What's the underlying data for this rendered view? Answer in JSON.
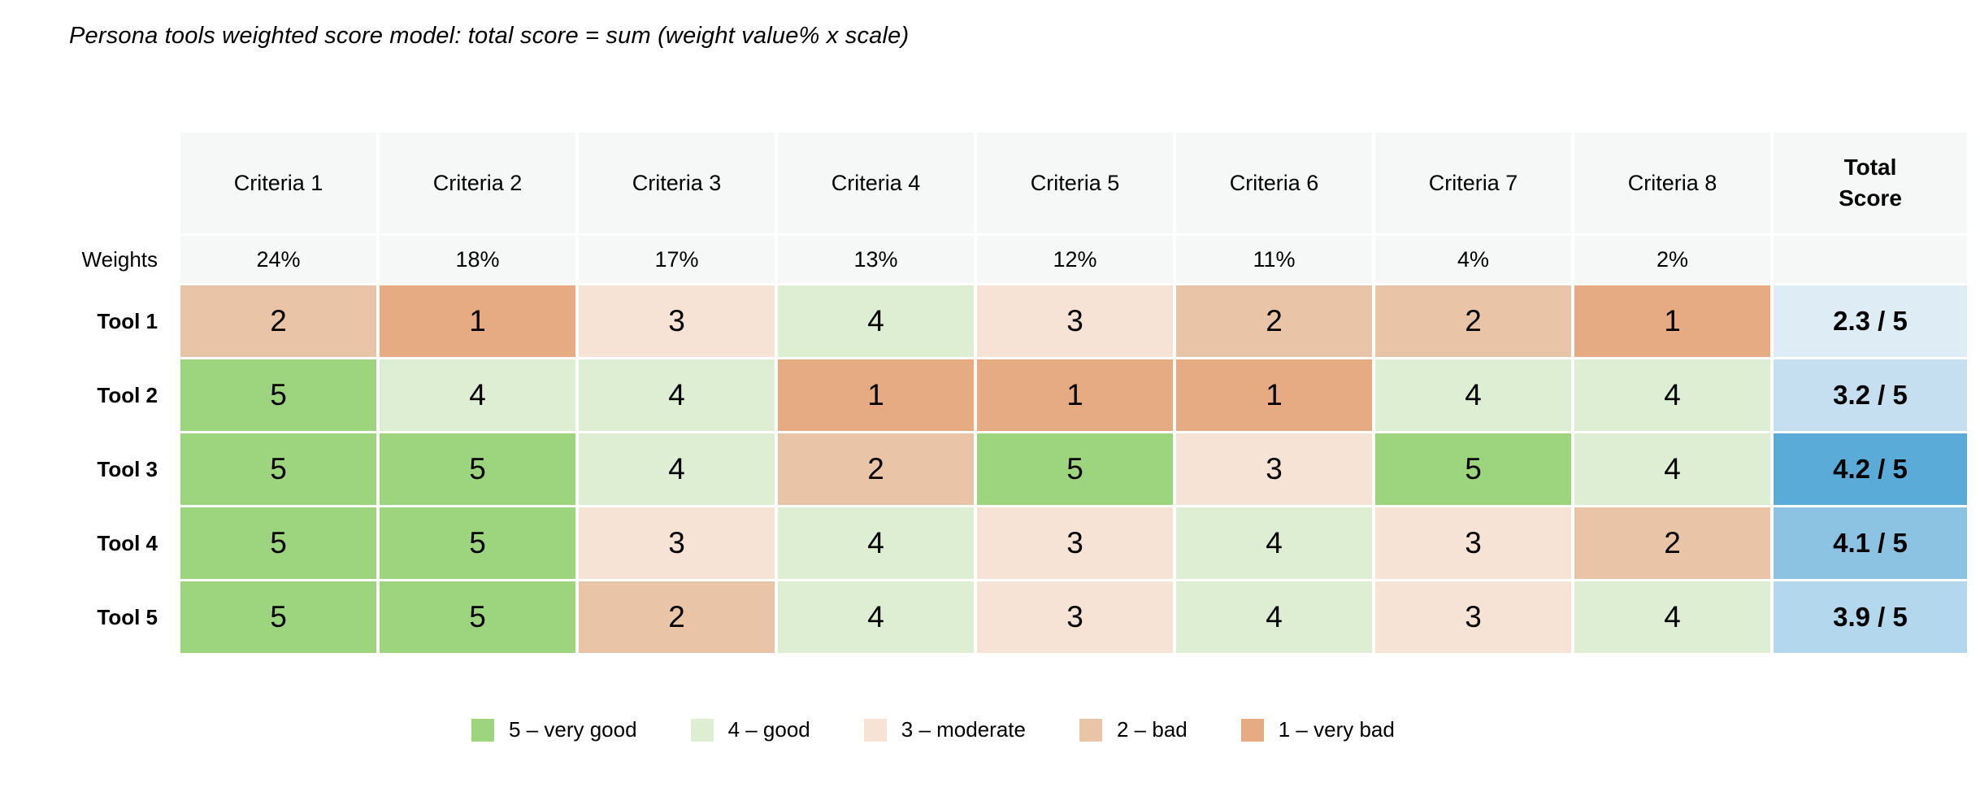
{
  "title": "Persona tools weighted score model: total score = sum (weight value% x scale)",
  "chart_data": {
    "type": "heatmap",
    "title": "Persona tools weighted score model: total score = sum (weight value% x scale)",
    "columns": [
      "Criteria 1",
      "Criteria 2",
      "Criteria 3",
      "Criteria 4",
      "Criteria 5",
      "Criteria 6",
      "Criteria 7",
      "Criteria 8"
    ],
    "total_header": "Total\nScore",
    "weights_label": "Weights",
    "weights": [
      "24%",
      "18%",
      "17%",
      "13%",
      "12%",
      "11%",
      "4%",
      "2%"
    ],
    "rows": [
      {
        "label": "Tool 1",
        "values": [
          2,
          1,
          3,
          4,
          3,
          2,
          2,
          1
        ],
        "total": "2.3 / 5",
        "total_color": "#ddecf5"
      },
      {
        "label": "Tool 2",
        "values": [
          5,
          4,
          4,
          1,
          1,
          1,
          4,
          4
        ],
        "total": "3.2 / 5",
        "total_color": "#c5def0"
      },
      {
        "label": "Tool 3",
        "values": [
          5,
          5,
          4,
          2,
          5,
          3,
          5,
          4
        ],
        "total": "4.2 / 5",
        "total_color": "#5babd9"
      },
      {
        "label": "Tool 4",
        "values": [
          5,
          5,
          3,
          4,
          3,
          4,
          3,
          2
        ],
        "total": "4.1 / 5",
        "total_color": "#8dc3e2"
      },
      {
        "label": "Tool 5",
        "values": [
          5,
          5,
          2,
          4,
          3,
          4,
          3,
          4
        ],
        "total": "3.9 / 5",
        "total_color": "#b3d7ec"
      }
    ],
    "scale_colors": {
      "1": "#e6ab82",
      "2": "#eac4a6",
      "3": "#f7e3d5",
      "4": "#ddeed3",
      "5": "#9cd57e"
    },
    "header_bg": "#f6f7f7",
    "legend_position": "bottom",
    "legend": [
      {
        "label": "5 – very good",
        "color": "#9cd57e"
      },
      {
        "label": "4 – good",
        "color": "#ddeed3"
      },
      {
        "label": "3 – moderate",
        "color": "#f7e3d5"
      },
      {
        "label": "2 – bad",
        "color": "#eac4a6"
      },
      {
        "label": "1 – very bad",
        "color": "#e6ab82"
      }
    ]
  }
}
